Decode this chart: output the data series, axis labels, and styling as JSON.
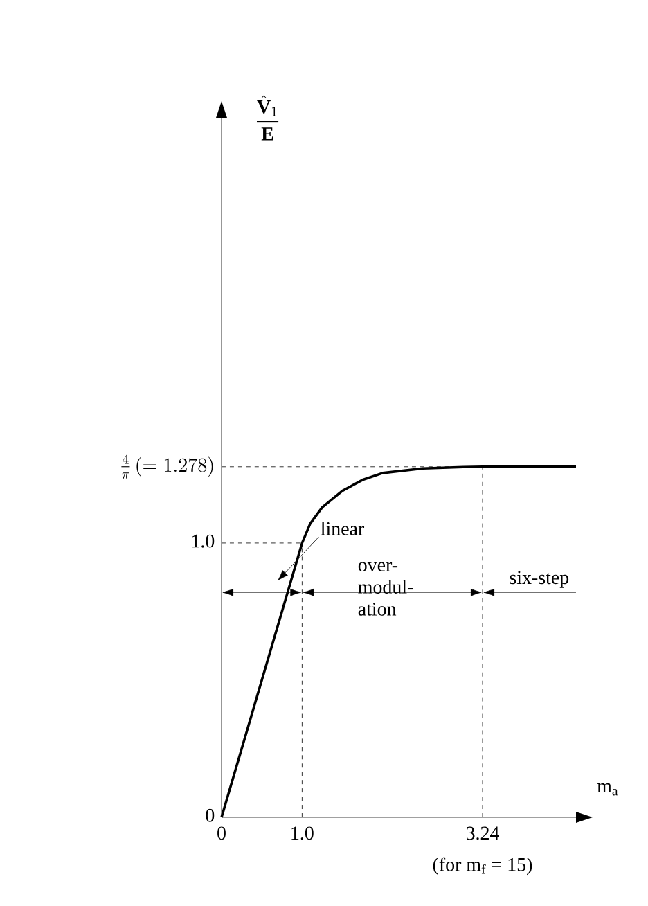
{
  "chart_data": {
    "type": "line",
    "xlabel": "m$_{a}$",
    "ylabel": "\\frac{\\hat{\\mathbf{V}}_{1}}{\\mathbf{E}}",
    "x": [
      0,
      1.0,
      1.1,
      1.25,
      1.5,
      1.75,
      2.0,
      2.5,
      3.0,
      3.24,
      4.4
    ],
    "series": [
      {
        "color": "#000000",
        "values": [
          0,
          1.0,
          1.07,
          1.13,
          1.19,
          1.23,
          1.255,
          1.272,
          1.277,
          1.278,
          1.278
        ]
      }
    ],
    "xlim": [
      0,
      4.4
    ],
    "ylim": [
      0,
      2.55
    ],
    "xticks": [
      0,
      {
        "value": 1.0,
        "label": "1.0"
      },
      3.24
    ],
    "yticks": [
      0,
      {
        "value": 1.0,
        "label": "1.0"
      },
      {
        "value": 1.278,
        "label": "\\frac{4}{\\pi}\\left(=1.278\\right)"
      }
    ],
    "ref_lines": [
      {
        "axis": "y",
        "value": 1.0,
        "line_style": "dashed"
      },
      {
        "axis": "y",
        "value": 1.278,
        "line_style": "dashed"
      },
      {
        "axis": "x",
        "value": 1.0,
        "line_style": "dashed"
      },
      {
        "axis": "x",
        "value": 3.24,
        "line_style": "dashed"
      }
    ],
    "annotations": [
      "linear",
      "over- modul- ation",
      "six-step",
      "(for m$_{f}$ = 15)"
    ],
    "grid": false,
    "marker": "none",
    "line_style": "solid"
  }
}
